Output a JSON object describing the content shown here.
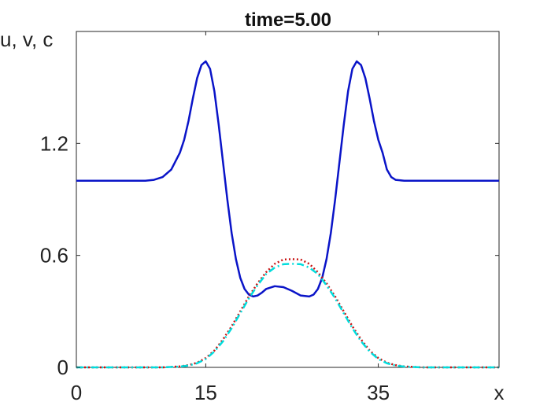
{
  "chart_data": {
    "type": "line",
    "title": "time=5.00",
    "xlabel": "x",
    "ylabel": "u, v, c",
    "xlim": [
      0,
      49
    ],
    "ylim": [
      0,
      1.8
    ],
    "xticks": [
      0,
      15,
      35
    ],
    "xtick_labels": [
      "0",
      "15",
      "35"
    ],
    "yticks": [
      0,
      0.6,
      1.2
    ],
    "ytick_labels": [
      "0",
      "0.6",
      "1.2"
    ],
    "grid": false,
    "series": [
      {
        "style": "solid",
        "color": "#0a14c8",
        "x": [
          0,
          2,
          4,
          6,
          8,
          9,
          10,
          11,
          12,
          12.5,
          13,
          13.5,
          14,
          14.5,
          15,
          15.5,
          16,
          16.5,
          17,
          17.5,
          18,
          18.5,
          19,
          19.5,
          20,
          20.5,
          21,
          21.5,
          22,
          23,
          24,
          25,
          26,
          27,
          27.5,
          28,
          28.5,
          29,
          29.5,
          30,
          30.5,
          31,
          31.5,
          32,
          32.5,
          33,
          33.5,
          34,
          34.5,
          35,
          35.5,
          36,
          36.5,
          37,
          38,
          39,
          40,
          42,
          44,
          46,
          48,
          49
        ],
        "y": [
          1.0,
          1.0,
          1.0,
          1.0,
          1.0,
          1.005,
          1.02,
          1.06,
          1.15,
          1.22,
          1.32,
          1.44,
          1.55,
          1.62,
          1.64,
          1.6,
          1.48,
          1.3,
          1.1,
          0.9,
          0.72,
          0.58,
          0.48,
          0.42,
          0.39,
          0.38,
          0.385,
          0.4,
          0.42,
          0.435,
          0.43,
          0.41,
          0.385,
          0.38,
          0.39,
          0.42,
          0.48,
          0.58,
          0.72,
          0.9,
          1.1,
          1.3,
          1.48,
          1.6,
          1.64,
          1.62,
          1.55,
          1.44,
          1.32,
          1.22,
          1.15,
          1.06,
          1.02,
          1.005,
          1.0,
          1.0,
          1.0,
          1.0,
          1.0,
          1.0,
          1.0,
          1.0
        ]
      },
      {
        "style": "dotted",
        "color": "#c81414",
        "x": [
          0,
          10,
          12,
          13,
          14,
          15,
          16,
          17,
          18,
          19,
          20,
          21,
          22,
          23,
          24,
          25,
          26,
          27,
          28,
          29,
          30,
          31,
          32,
          33,
          34,
          35,
          36,
          37,
          38,
          40,
          49
        ],
        "y": [
          0,
          0,
          0.005,
          0.012,
          0.025,
          0.05,
          0.09,
          0.15,
          0.22,
          0.3,
          0.38,
          0.45,
          0.51,
          0.555,
          0.578,
          0.58,
          0.578,
          0.555,
          0.51,
          0.45,
          0.38,
          0.3,
          0.22,
          0.15,
          0.09,
          0.05,
          0.025,
          0.012,
          0.005,
          0,
          0
        ]
      },
      {
        "style": "dashdot",
        "color": "#00dcdc",
        "x": [
          0,
          10,
          12,
          13,
          14,
          15,
          16,
          17,
          18,
          19,
          20,
          21,
          22,
          23,
          24,
          25,
          26,
          27,
          28,
          29,
          30,
          31,
          32,
          33,
          34,
          35,
          36,
          37,
          38,
          40,
          49
        ],
        "y": [
          0,
          0,
          0.004,
          0.01,
          0.022,
          0.045,
          0.085,
          0.14,
          0.21,
          0.29,
          0.37,
          0.44,
          0.5,
          0.535,
          0.553,
          0.555,
          0.553,
          0.535,
          0.5,
          0.44,
          0.37,
          0.29,
          0.21,
          0.14,
          0.085,
          0.045,
          0.022,
          0.01,
          0.004,
          0,
          0
        ]
      }
    ]
  }
}
